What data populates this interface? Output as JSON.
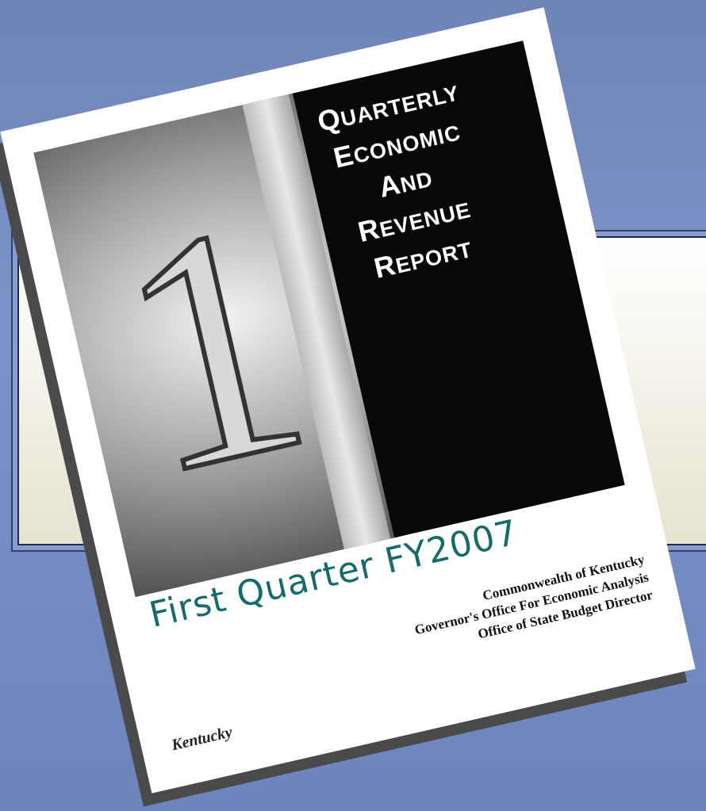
{
  "cover": {
    "title_lines": [
      "QUARTERLY",
      "ECONOMIC",
      "AND",
      "REVENUE",
      "REPORT"
    ],
    "subtitle": "First Quarter FY2007",
    "organizations": [
      "Commonwealth of Kentucky",
      "Governor's Office For Economic Analysis",
      "Office of State Budget Director"
    ],
    "logo": "Kentucky"
  }
}
